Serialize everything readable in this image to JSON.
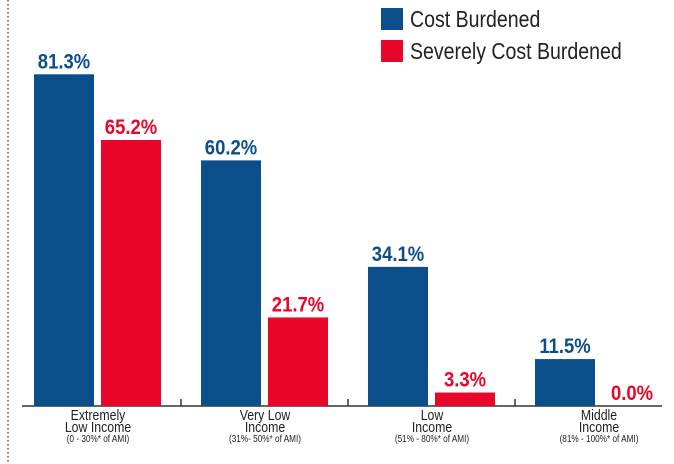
{
  "chart_data": {
    "type": "bar",
    "categories": [
      "Extremely\nLow Income",
      "Very Low\nIncome",
      "Low\nIncome",
      "Middle\nIncome"
    ],
    "category_sublabels": [
      "(0 - 30%* of AMI)",
      "(31%- 50%* of AMI)",
      "(51% - 80%* of AMI)",
      "(81% - 100%* of AMI)"
    ],
    "series": [
      {
        "name": "Cost Burdened",
        "color": "#0b4f8a",
        "values": [
          81.3,
          60.2,
          34.1,
          11.5
        ],
        "value_labels": [
          "81.3%",
          "60.2%",
          "34.1%",
          "11.5%"
        ]
      },
      {
        "name": "Severely Cost Burdened",
        "color": "#e8062a",
        "values": [
          65.2,
          21.7,
          3.3,
          0.0
        ],
        "value_labels": [
          "65.2%",
          "21.7%",
          "3.3%",
          "0.0%"
        ]
      }
    ],
    "ylim": [
      0,
      100
    ],
    "legend": "upper right"
  }
}
